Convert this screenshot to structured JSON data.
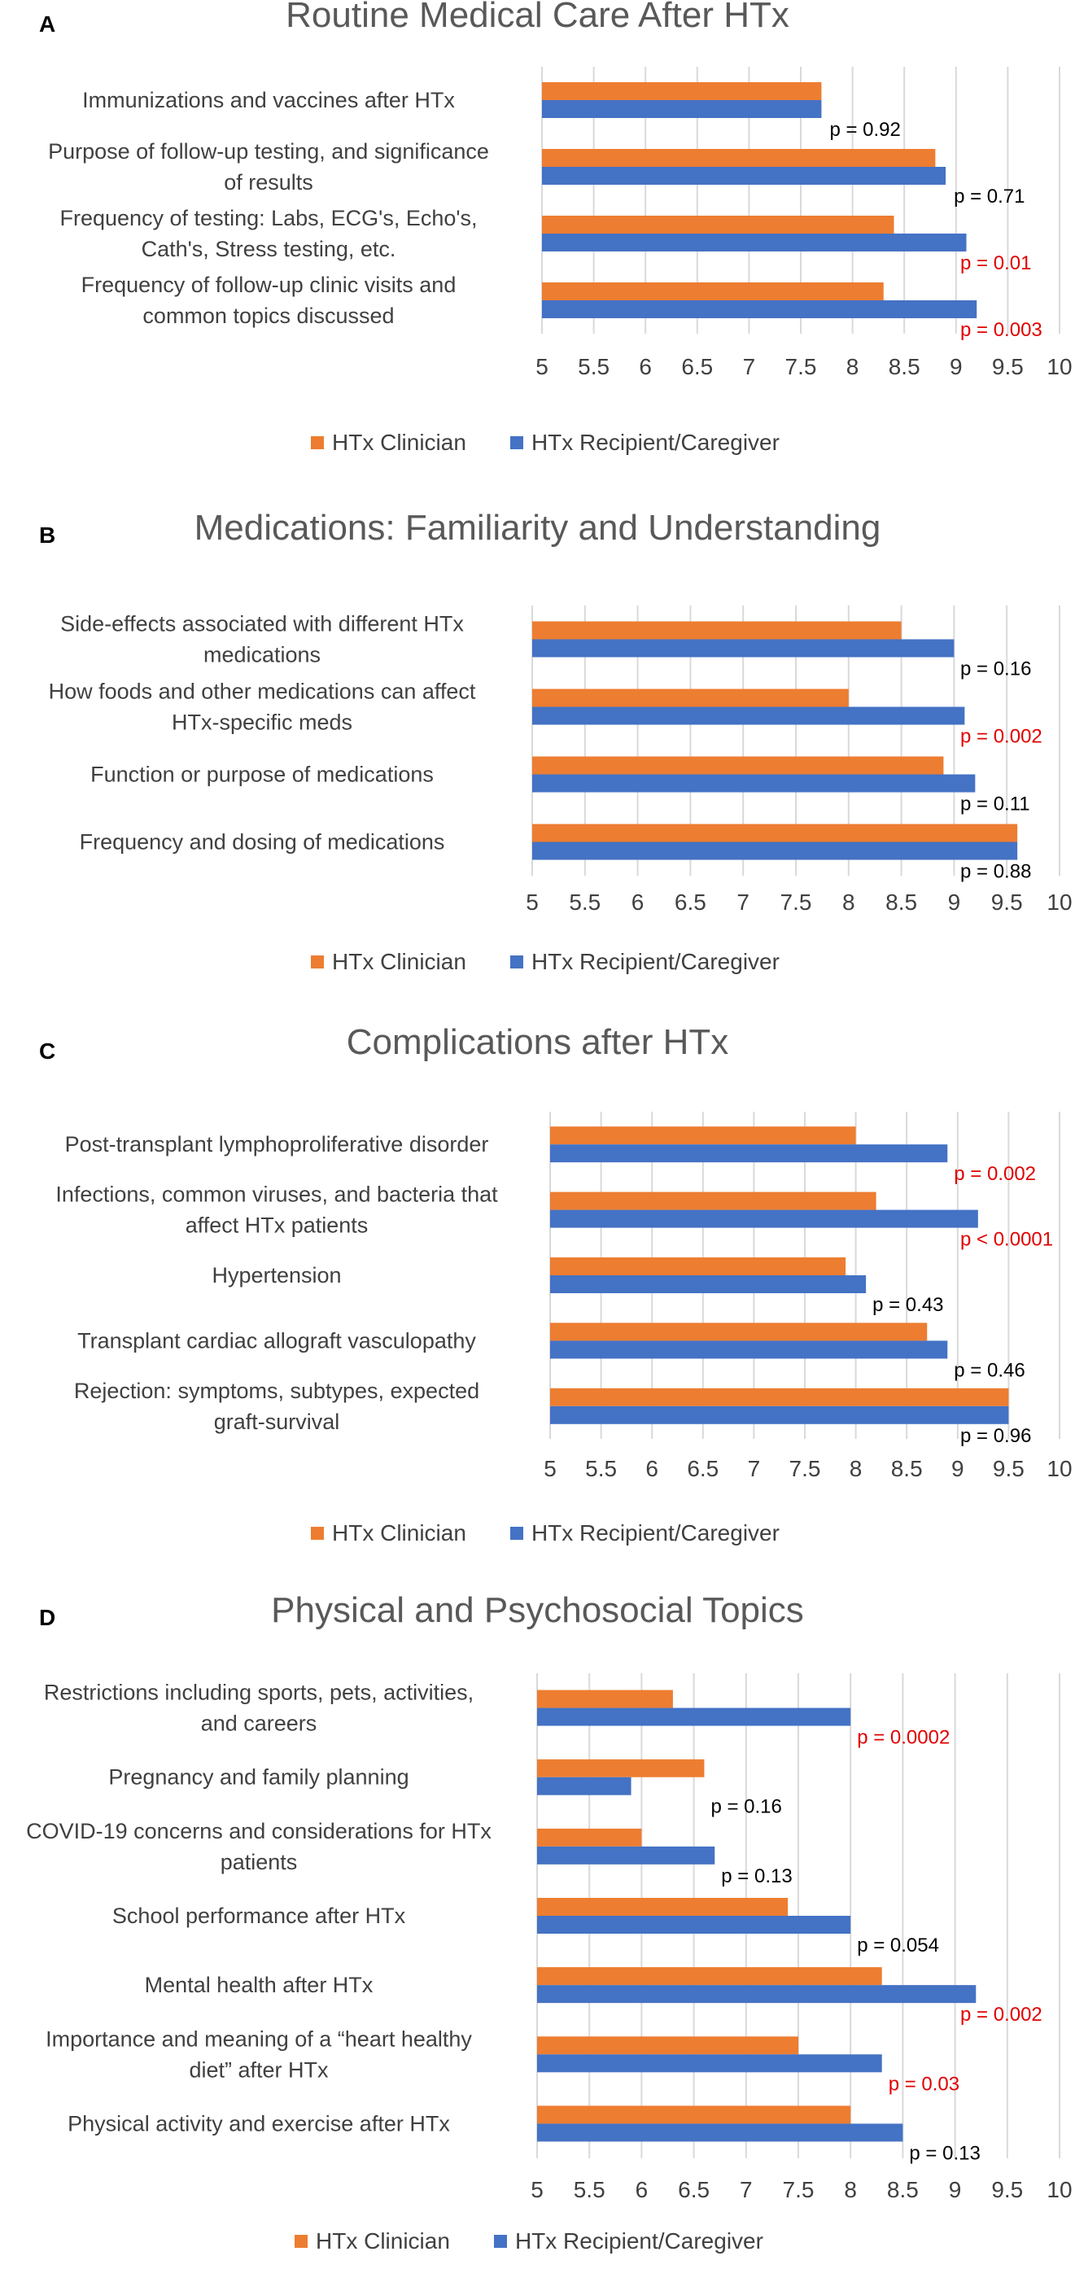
{
  "colors": {
    "clinician": "#ED7D31",
    "recipient": "#4472C4",
    "grid": "#D9D9D9",
    "significant": "#E00000",
    "normal": "#000000"
  },
  "legend": {
    "clinician": "HTx Clinician",
    "recipient": "HTx Recipient/Caregiver"
  },
  "panels": [
    {
      "letter": "A",
      "title": "Routine Medical Care After HTx",
      "chart_data": {
        "type": "bar",
        "orientation": "horizontal",
        "title": "Routine Medical Care After HTx",
        "xlim": [
          5,
          10
        ],
        "ticks": [
          "5",
          "5.5",
          "6",
          "6.5",
          "7",
          "7.5",
          "8",
          "8.5",
          "9",
          "9.5",
          "10"
        ],
        "grid": true,
        "legend_position": "bottom",
        "categories": [
          [
            "Immunizations and vaccines after HTx"
          ],
          [
            "Purpose of follow-up testing, and significance",
            "of results"
          ],
          [
            "Frequency of testing: Labs, ECG's, Echo's,",
            "Cath's, Stress testing, etc."
          ],
          [
            "Frequency of follow-up clinic visits and",
            "common topics discussed"
          ]
        ],
        "series": [
          {
            "name": "HTx Clinician",
            "values": [
              7.7,
              8.8,
              8.4,
              8.3
            ]
          },
          {
            "name": "HTx Recipient/Caregiver",
            "values": [
              7.7,
              8.9,
              9.1,
              9.2
            ]
          }
        ],
        "annotations": [
          {
            "text": "p = 0.92",
            "significant": false
          },
          {
            "text": "p = 0.71",
            "significant": false
          },
          {
            "text": "p = 0.01",
            "significant": true
          },
          {
            "text": "p = 0.003",
            "significant": true
          }
        ]
      }
    },
    {
      "letter": "B",
      "title": "Medications: Familiarity and Understanding",
      "chart_data": {
        "type": "bar",
        "orientation": "horizontal",
        "title": "Medications: Familiarity and Understanding",
        "xlim": [
          5,
          10
        ],
        "ticks": [
          "5",
          "5.5",
          "6",
          "6.5",
          "7",
          "7.5",
          "8",
          "8.5",
          "9",
          "9.5",
          "10"
        ],
        "grid": true,
        "legend_position": "bottom",
        "categories": [
          [
            "Side-effects associated with different HTx",
            "medications"
          ],
          [
            "How foods and other medications can affect",
            "HTx-specific meds"
          ],
          [
            "Function or purpose of medications"
          ],
          [
            "Frequency and dosing of medications"
          ]
        ],
        "series": [
          {
            "name": "HTx Clinician",
            "values": [
              8.5,
              8.0,
              8.9,
              9.6
            ]
          },
          {
            "name": "HTx Recipient/Caregiver",
            "values": [
              9.0,
              9.1,
              9.2,
              9.6
            ]
          }
        ],
        "annotations": [
          {
            "text": "p = 0.16",
            "significant": false
          },
          {
            "text": "p = 0.002",
            "significant": true
          },
          {
            "text": "p = 0.11",
            "significant": false
          },
          {
            "text": "p = 0.88",
            "significant": false
          }
        ]
      }
    },
    {
      "letter": "C",
      "title": "Complications after HTx",
      "chart_data": {
        "type": "bar",
        "orientation": "horizontal",
        "title": "Complications after HTx",
        "xlim": [
          5,
          10
        ],
        "ticks": [
          "5",
          "5.5",
          "6",
          "6.5",
          "7",
          "7.5",
          "8",
          "8.5",
          "9",
          "9.5",
          "10"
        ],
        "grid": true,
        "legend_position": "bottom",
        "categories": [
          [
            "Post-transplant lymphoproliferative disorder"
          ],
          [
            "Infections, common viruses, and bacteria that",
            "affect HTx patients"
          ],
          [
            "Hypertension"
          ],
          [
            "Transplant cardiac allograft vasculopathy"
          ],
          [
            "Rejection: symptoms, subtypes, expected",
            "graft-survival"
          ]
        ],
        "series": [
          {
            "name": "HTx Clinician",
            "values": [
              8.0,
              8.2,
              7.9,
              8.7,
              9.5
            ]
          },
          {
            "name": "HTx Recipient/Caregiver",
            "values": [
              8.9,
              9.2,
              8.1,
              8.9,
              9.5
            ]
          }
        ],
        "annotations": [
          {
            "text": "p = 0.002",
            "significant": true
          },
          {
            "text": "p < 0.0001",
            "significant": true
          },
          {
            "text": "p = 0.43",
            "significant": false
          },
          {
            "text": "p = 0.46",
            "significant": false
          },
          {
            "text": "p = 0.96",
            "significant": false
          }
        ]
      }
    },
    {
      "letter": "D",
      "title": "Physical and Psychosocial Topics",
      "chart_data": {
        "type": "bar",
        "orientation": "horizontal",
        "title": "Physical and Psychosocial Topics",
        "xlim": [
          5,
          10
        ],
        "ticks": [
          "5",
          "5.5",
          "6",
          "6.5",
          "7",
          "7.5",
          "8",
          "8.5",
          "9",
          "9.5",
          "10"
        ],
        "grid": true,
        "legend_position": "bottom",
        "categories": [
          [
            "Restrictions including sports, pets, activities,",
            "and careers"
          ],
          [
            "Pregnancy and family planning"
          ],
          [
            "COVID-19 concerns and considerations for HTx",
            "patients"
          ],
          [
            "School performance after HTx"
          ],
          [
            "Mental health after HTx"
          ],
          [
            "Importance and meaning of a “heart healthy",
            "diet” after HTx"
          ],
          [
            "Physical activity and exercise after HTx"
          ]
        ],
        "series": [
          {
            "name": "HTx Clinician",
            "values": [
              6.3,
              6.6,
              6.0,
              7.4,
              8.3,
              7.5,
              8.0
            ]
          },
          {
            "name": "HTx Recipient/Caregiver",
            "values": [
              8.0,
              5.9,
              6.7,
              8.0,
              9.2,
              8.3,
              8.5
            ]
          }
        ],
        "annotations": [
          {
            "text": "p = 0.0002",
            "significant": true
          },
          {
            "text": "p = 0.16",
            "significant": false
          },
          {
            "text": "p = 0.13",
            "significant": false
          },
          {
            "text": "p = 0.054",
            "significant": false
          },
          {
            "text": "p = 0.002",
            "significant": true
          },
          {
            "text": "p = 0.03",
            "significant": true
          },
          {
            "text": "p = 0.13",
            "significant": false
          }
        ]
      }
    }
  ]
}
